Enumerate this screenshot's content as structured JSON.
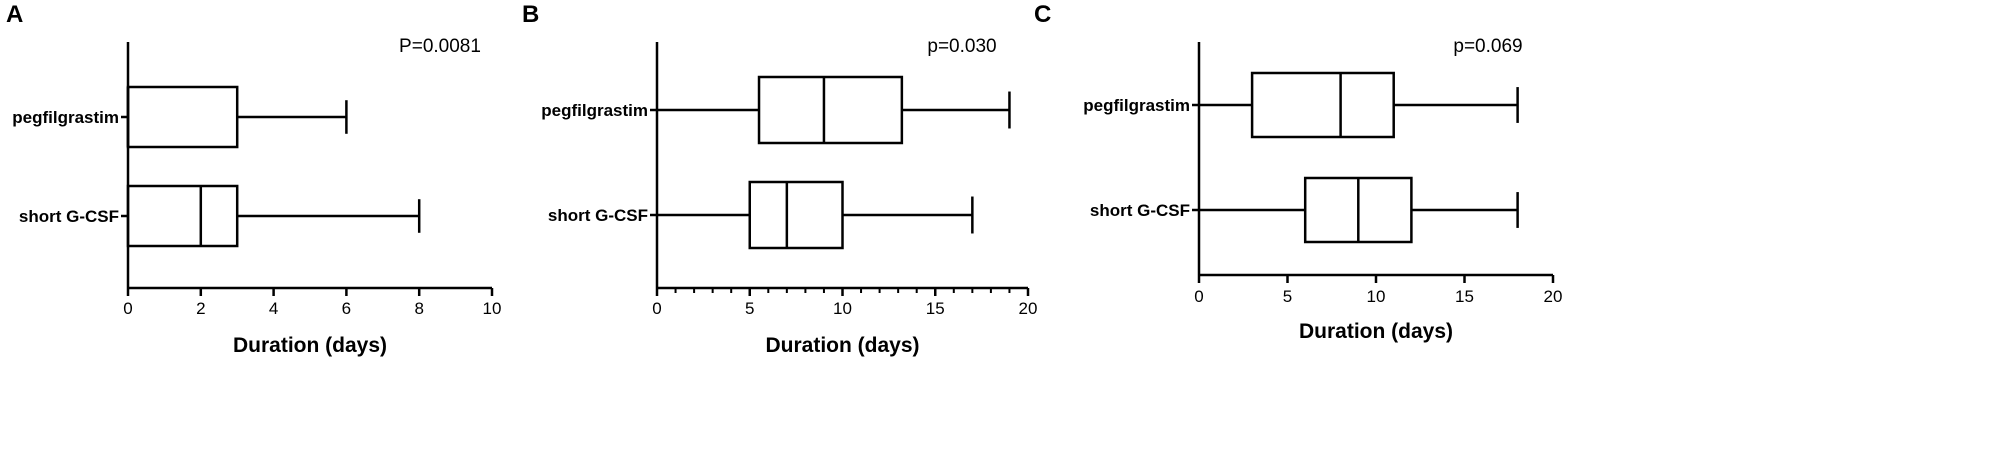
{
  "chart_data": [
    {
      "type": "boxplot",
      "panel": "A",
      "annotation": "P=0.0081",
      "xlabel": "Duration (days)",
      "xlim": [
        0,
        10
      ],
      "xticks": [
        "0",
        "2",
        "4",
        "6",
        "8",
        "10"
      ],
      "xtick_values": [
        0,
        2,
        4,
        6,
        8,
        10
      ],
      "categories": [
        "pegfilgrastim",
        "short G-CSF"
      ],
      "boxes": [
        {
          "category": "pegfilgrastim",
          "min": 0,
          "q1": 0,
          "median": 0,
          "q3": 3,
          "max": 6
        },
        {
          "category": "short G-CSF",
          "min": 0,
          "q1": 0,
          "median": 2,
          "q3": 3,
          "max": 8
        }
      ]
    },
    {
      "type": "boxplot",
      "panel": "B",
      "annotation": "p=0.030",
      "xlabel": "Duration (days)",
      "xlim": [
        0,
        20
      ],
      "xticks": [
        "0",
        "5",
        "10",
        "15",
        "20"
      ],
      "xtick_values": [
        0,
        5,
        10,
        15,
        20
      ],
      "categories": [
        "pegfilgrastim",
        "short G-CSF"
      ],
      "boxes": [
        {
          "category": "pegfilgrastim",
          "min": 0,
          "q1": 5.5,
          "median": 9,
          "q3": 13.2,
          "max": 19
        },
        {
          "category": "short G-CSF",
          "min": 0,
          "q1": 5,
          "median": 7,
          "q3": 10,
          "max": 17
        }
      ]
    },
    {
      "type": "boxplot",
      "panel": "C",
      "annotation": "p=0.069",
      "xlabel": "Duration (days)",
      "xlim": [
        0,
        20
      ],
      "xticks": [
        "0",
        "5",
        "10",
        "15",
        "20"
      ],
      "xtick_values": [
        0,
        5,
        10,
        15,
        20
      ],
      "categories": [
        "pegfilgrastim",
        "short G-CSF"
      ],
      "boxes": [
        {
          "category": "pegfilgrastim",
          "min": 0,
          "q1": 3,
          "median": 8,
          "q3": 11,
          "max": 18
        },
        {
          "category": "short G-CSF",
          "min": 0,
          "q1": 6,
          "median": 9,
          "q3": 12,
          "max": 18
        }
      ]
    }
  ]
}
